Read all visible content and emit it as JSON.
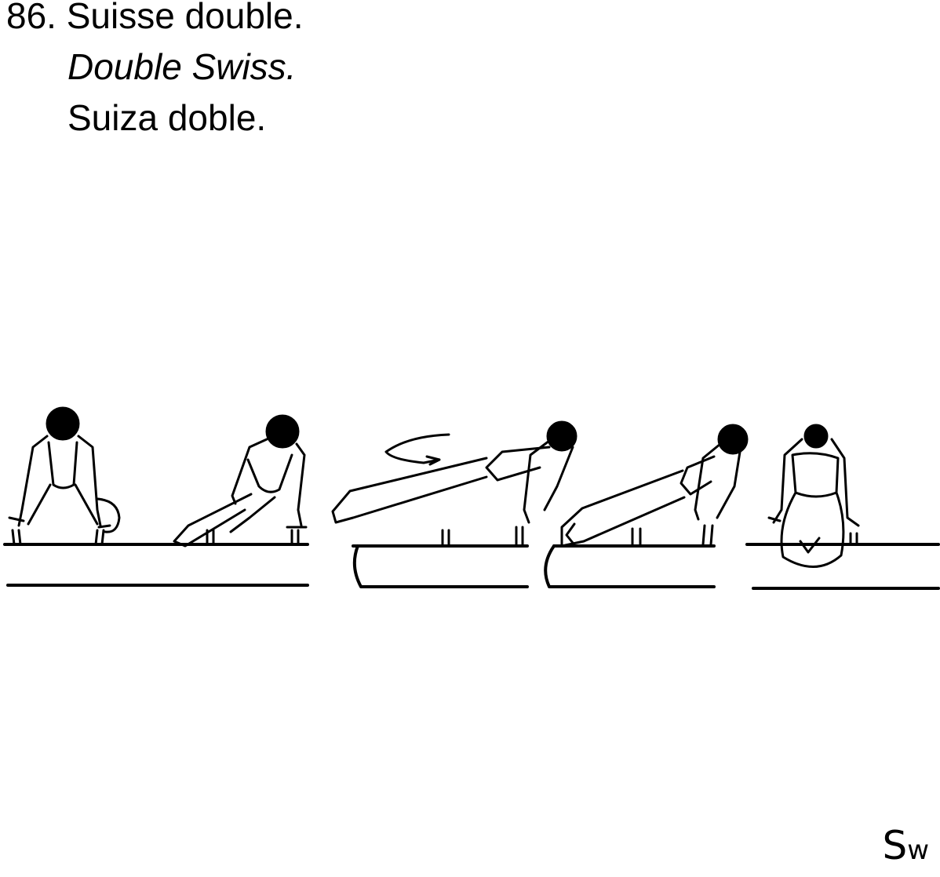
{
  "element": {
    "number_label": "86. Suisse double.",
    "name_english": "Double Swiss.",
    "name_spanish": "Suiza doble.",
    "symbol_main": "S",
    "symbol_sub": "w"
  },
  "illustration": {
    "frames": [
      {
        "phase": "front support, facing forward"
      },
      {
        "phase": "turning, one leg swung over pommel"
      },
      {
        "phase": "legs swinging across horse, rotation arrow"
      },
      {
        "phase": "legs swinging downward, second rotation"
      },
      {
        "phase": "back view after double turn"
      }
    ],
    "colors": {
      "ink": "#000000",
      "paper": "#ffffff"
    }
  }
}
